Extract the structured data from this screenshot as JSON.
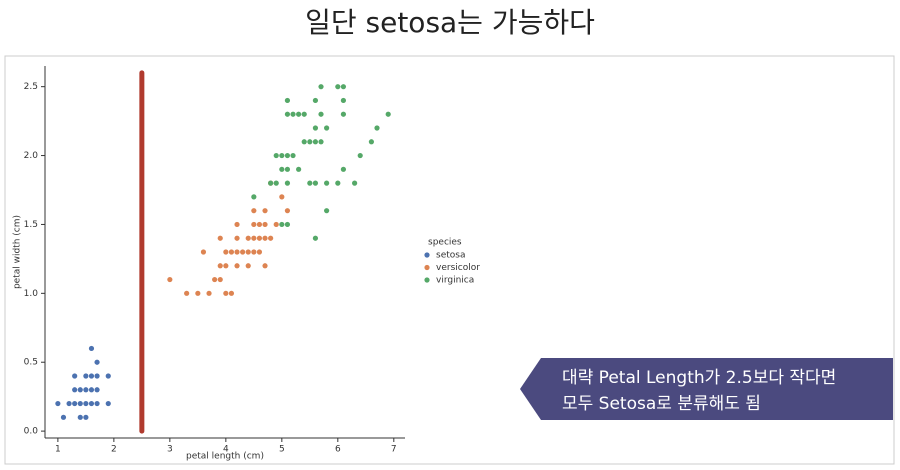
{
  "page_title": "일단 setosa는 가능하다",
  "chart_data": {
    "type": "scatter",
    "x_label": "petal length (cm)",
    "y_label": "petal width (cm)",
    "xlim": [
      0.77,
      7.2
    ],
    "xticks": [
      1,
      2,
      3,
      4,
      5,
      6,
      7
    ],
    "ylim": [
      -0.05,
      2.65
    ],
    "yticks": [
      {
        "value": 0,
        "label": "0.0"
      },
      0.5,
      {
        "value": 1,
        "label": "1.0"
      },
      1.5,
      {
        "value": 2,
        "label": "2.0"
      },
      2.5
    ],
    "legend_title": "species",
    "legend_position": "right",
    "series": [
      {
        "name": "setosa",
        "color": "#4c72b0",
        "x": [
          1.6,
          1.7,
          1.3,
          1.5,
          1.6,
          1.7,
          1.9,
          1.3,
          1.4,
          1.5,
          1.6,
          1.7,
          1.0,
          1.2,
          1.3,
          1.4,
          1.5,
          1.6,
          1.7,
          1.9,
          1.1,
          1.4,
          1.5
        ],
        "y": [
          0.6,
          0.5,
          0.4,
          0.4,
          0.4,
          0.4,
          0.4,
          0.3,
          0.3,
          0.3,
          0.3,
          0.3,
          0.2,
          0.2,
          0.2,
          0.2,
          0.2,
          0.2,
          0.2,
          0.2,
          0.1,
          0.1,
          0.1
        ]
      },
      {
        "name": "versicolor",
        "color": "#dd8452",
        "x": [
          3.3,
          3.5,
          3.7,
          4.0,
          4.1,
          3.0,
          3.8,
          3.9,
          3.9,
          4.0,
          4.2,
          4.4,
          4.7,
          3.6,
          4.0,
          4.1,
          4.2,
          4.3,
          4.4,
          4.5,
          4.6,
          3.9,
          4.2,
          4.4,
          4.5,
          4.6,
          4.7,
          4.8,
          4.2,
          4.5,
          4.6,
          4.7,
          4.9,
          4.5,
          4.7,
          5.1,
          5.0,
          4.8
        ],
        "y": [
          1.0,
          1.0,
          1.0,
          1.0,
          1.0,
          1.1,
          1.1,
          1.1,
          1.2,
          1.2,
          1.2,
          1.2,
          1.2,
          1.3,
          1.3,
          1.3,
          1.3,
          1.3,
          1.3,
          1.3,
          1.3,
          1.4,
          1.4,
          1.4,
          1.4,
          1.4,
          1.4,
          1.4,
          1.5,
          1.5,
          1.5,
          1.5,
          1.5,
          1.6,
          1.6,
          1.6,
          1.7,
          1.8
        ]
      },
      {
        "name": "virginica",
        "color": "#55a868",
        "x": [
          5.6,
          5.0,
          5.1,
          5.8,
          4.5,
          4.8,
          4.9,
          5.1,
          5.5,
          5.6,
          5.8,
          6.0,
          6.3,
          5.0,
          5.1,
          5.3,
          6.1,
          4.9,
          5.0,
          5.1,
          5.2,
          6.4,
          5.4,
          5.5,
          5.6,
          5.7,
          6.6,
          5.6,
          5.8,
          6.7,
          5.1,
          5.2,
          5.3,
          5.4,
          5.7,
          6.1,
          6.9,
          5.1,
          5.6,
          6.1,
          5.7,
          6.0,
          6.1
        ],
        "y": [
          1.4,
          1.5,
          1.5,
          1.6,
          1.7,
          1.8,
          1.8,
          1.8,
          1.8,
          1.8,
          1.8,
          1.8,
          1.8,
          1.9,
          1.9,
          1.9,
          1.9,
          2.0,
          2.0,
          2.0,
          2.0,
          2.0,
          2.1,
          2.1,
          2.1,
          2.1,
          2.1,
          2.2,
          2.2,
          2.2,
          2.3,
          2.3,
          2.3,
          2.3,
          2.3,
          2.3,
          2.3,
          2.4,
          2.4,
          2.4,
          2.5,
          2.5,
          2.5
        ]
      }
    ],
    "threshold_line": {
      "x": 2.5,
      "y": [
        0,
        2.6
      ],
      "color": "#b03a2e"
    },
    "callout": [
      "대략 Petal Length가 2.5보다 작다면",
      "모두 Setosa로 분류해도 됨"
    ]
  }
}
